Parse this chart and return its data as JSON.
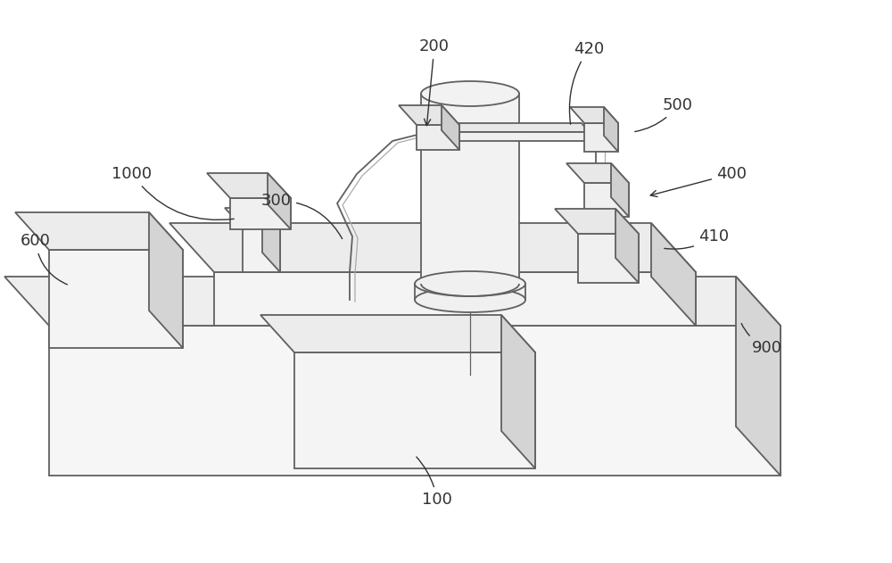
{
  "bg_color": "#ffffff",
  "lc": "#606060",
  "lc_l": "#aaaaaa",
  "face": "#f5f5f5",
  "side": "#d8d8d8",
  "top": "#ebebeb",
  "figsize": [
    10.0,
    6.31
  ],
  "dpi": 100
}
